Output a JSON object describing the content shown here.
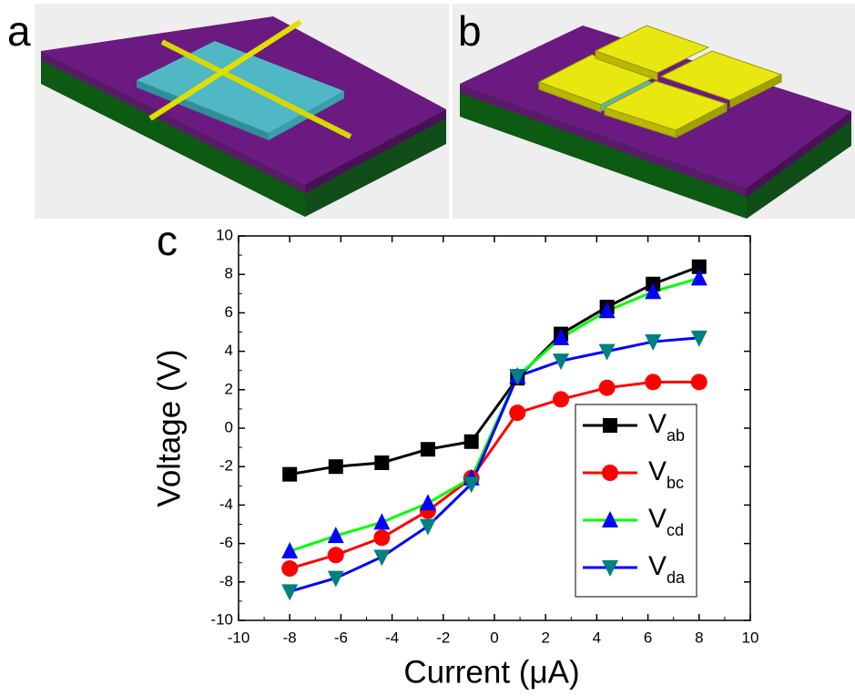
{
  "panel_labels": [
    "a",
    "b",
    "c"
  ],
  "chart_data": {
    "type": "line",
    "xlabel": "Current (μA)",
    "ylabel": "Voltage (V)",
    "x": [
      -8,
      -6.2,
      -4.4,
      -2.6,
      -0.9,
      0.9,
      2.6,
      4.4,
      6.2,
      8
    ],
    "series": [
      {
        "name": "Vab",
        "color": "#000000",
        "marker_color": "#000000",
        "marker": "square",
        "values": [
          -2.4,
          -2.0,
          -1.8,
          -1.1,
          -0.7,
          2.6,
          4.9,
          6.3,
          7.5,
          8.4
        ]
      },
      {
        "name": "Vbc",
        "color": "#ff0000",
        "marker_color": "#ff0000",
        "marker": "circle",
        "values": [
          -7.3,
          -6.6,
          -5.7,
          -4.3,
          -2.6,
          0.8,
          1.5,
          2.1,
          2.4,
          2.4
        ]
      },
      {
        "name": "Vcd",
        "color": "#00ff00",
        "marker_color": "#0000ff",
        "marker": "triangle-up",
        "values": [
          -6.4,
          -5.6,
          -4.9,
          -3.9,
          -2.6,
          2.7,
          4.7,
          6.1,
          7.1,
          7.8
        ]
      },
      {
        "name": "Vda",
        "color": "#0000ff",
        "marker_color": "#008080",
        "marker": "triangle-down",
        "values": [
          -8.5,
          -7.8,
          -6.7,
          -5.1,
          -2.9,
          2.7,
          3.5,
          4.0,
          4.5,
          4.7
        ]
      }
    ],
    "xlim": [
      -10,
      10
    ],
    "xticks": [
      -10,
      -8,
      -6,
      -4,
      -2,
      0,
      2,
      4,
      6,
      8,
      10
    ],
    "ylim": [
      -10,
      10
    ],
    "yticks": [
      -10,
      -8,
      -6,
      -4,
      -2,
      0,
      2,
      4,
      6,
      8,
      10
    ],
    "grid": false,
    "legend": "lower right"
  }
}
